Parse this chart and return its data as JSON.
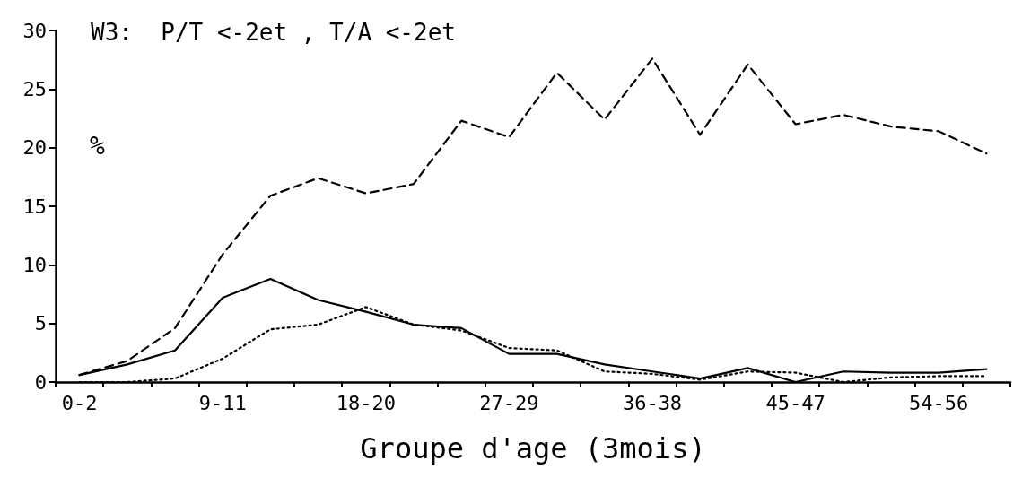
{
  "chart_data": {
    "type": "line",
    "title": "W3:  P/T <-2et , T/A <-2et",
    "xlabel": "Groupe d'age (3mois)",
    "ylabel": "%",
    "categories": [
      "0-2",
      null,
      null,
      "9-11",
      null,
      null,
      "18-20",
      null,
      null,
      "27-29",
      null,
      null,
      "36-38",
      null,
      null,
      "45-47",
      null,
      null,
      "54-56",
      null
    ],
    "series": [
      {
        "color": "#000000",
        "line_style": "dashed",
        "values": [
          0.6,
          1.8,
          4.6,
          10.9,
          15.9,
          17.4,
          16.1,
          16.9,
          22.3,
          20.9,
          26.4,
          22.4,
          27.6,
          21.1,
          27.1,
          22.0,
          22.8,
          21.8,
          21.4,
          19.5
        ]
      },
      {
        "color": "#000000",
        "line_style": "solid",
        "values": [
          0.6,
          1.5,
          2.7,
          7.2,
          8.8,
          7.0,
          6.0,
          4.9,
          4.6,
          2.4,
          2.4,
          1.5,
          0.9,
          0.3,
          1.2,
          0,
          0.9,
          0.8,
          0.8,
          1.1
        ]
      },
      {
        "color": "#000000",
        "line_style": "dotted",
        "values": [
          0,
          0,
          0.3,
          2.0,
          4.5,
          4.9,
          6.4,
          4.9,
          4.4,
          2.9,
          2.7,
          0.9,
          0.7,
          0.2,
          0.9,
          0.8,
          0,
          0.4,
          0.5,
          0.5
        ]
      }
    ],
    "ylim": [
      0,
      30
    ],
    "yticks": [
      0,
      5,
      10,
      15,
      20,
      25,
      30
    ],
    "grid": false,
    "marker": "none"
  }
}
